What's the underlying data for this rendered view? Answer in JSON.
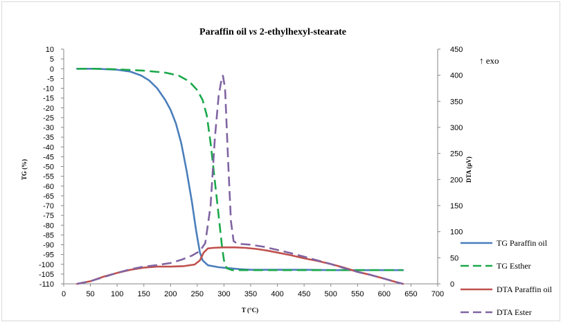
{
  "chart_data": {
    "type": "line",
    "title_prefix": "Paraffin oil ",
    "title_italic": "vs",
    "title_suffix": " 2-ethylhexyl-stearate",
    "xlabel": "T (°C)",
    "ylabel_left": "TG (%)",
    "ylabel_right": "DTA (µV)",
    "annotation": "↑ exo",
    "xlim": [
      0,
      700
    ],
    "x_ticks": [
      "0",
      "50",
      "100",
      "150",
      "200",
      "250",
      "300",
      "350",
      "400",
      "450",
      "500",
      "550",
      "600",
      "650",
      "700"
    ],
    "y_left_lim": [
      -110,
      10
    ],
    "y_left_ticks": [
      "10",
      "5",
      "0",
      "-5",
      "-10",
      "-15",
      "-20",
      "-25",
      "-30",
      "-35",
      "-40",
      "-45",
      "-50",
      "-55",
      "-60",
      "-65",
      "-70",
      "-75",
      "-80",
      "-85",
      "-90",
      "-95",
      "-100",
      "-105",
      "-110"
    ],
    "y_right_lim": [
      0,
      450
    ],
    "y_right_ticks": [
      "450",
      "400",
      "350",
      "300",
      "250",
      "200",
      "150",
      "100",
      "50",
      "0"
    ],
    "grid": false,
    "legend_position": "right",
    "series": [
      {
        "name": "TG Paraffin oil",
        "axis": "left",
        "color": "#4a7ebb",
        "dash": "solid",
        "points": [
          [
            25,
            0
          ],
          [
            60,
            0
          ],
          [
            100,
            -0.5
          ],
          [
            125,
            -1.5
          ],
          [
            145,
            -3.5
          ],
          [
            160,
            -6
          ],
          [
            175,
            -10
          ],
          [
            190,
            -16
          ],
          [
            200,
            -21
          ],
          [
            210,
            -28
          ],
          [
            220,
            -38
          ],
          [
            230,
            -52
          ],
          [
            240,
            -68
          ],
          [
            248,
            -83
          ],
          [
            255,
            -94
          ],
          [
            260,
            -98
          ],
          [
            270,
            -100.5
          ],
          [
            290,
            -101.5
          ],
          [
            310,
            -102
          ],
          [
            330,
            -102.5
          ],
          [
            350,
            -102.8
          ],
          [
            400,
            -102.8
          ],
          [
            450,
            -102.8
          ],
          [
            500,
            -103
          ],
          [
            550,
            -103
          ],
          [
            600,
            -103
          ],
          [
            635,
            -103
          ]
        ]
      },
      {
        "name": "TG Esther",
        "axis": "left",
        "color": "#1aa84a",
        "dash": "dash",
        "points": [
          [
            25,
            0
          ],
          [
            60,
            0
          ],
          [
            100,
            -0.3
          ],
          [
            150,
            -1
          ],
          [
            190,
            -2
          ],
          [
            215,
            -3.5
          ],
          [
            235,
            -6.5
          ],
          [
            250,
            -11
          ],
          [
            260,
            -16
          ],
          [
            268,
            -24
          ],
          [
            275,
            -38
          ],
          [
            282,
            -55
          ],
          [
            290,
            -75
          ],
          [
            296,
            -90
          ],
          [
            300,
            -98
          ],
          [
            305,
            -102
          ],
          [
            315,
            -103
          ],
          [
            350,
            -103
          ],
          [
            400,
            -103
          ],
          [
            450,
            -103
          ],
          [
            500,
            -103
          ],
          [
            550,
            -103
          ],
          [
            600,
            -103
          ],
          [
            635,
            -103
          ]
        ]
      },
      {
        "name": "DTA Paraffin oil",
        "axis": "right",
        "color": "#c0504d",
        "dash": "solid",
        "points": [
          [
            25,
            0
          ],
          [
            50,
            5
          ],
          [
            75,
            14
          ],
          [
            100,
            21
          ],
          [
            125,
            27
          ],
          [
            150,
            31
          ],
          [
            175,
            33
          ],
          [
            200,
            33
          ],
          [
            225,
            34
          ],
          [
            245,
            37
          ],
          [
            255,
            45
          ],
          [
            262,
            60
          ],
          [
            270,
            68
          ],
          [
            280,
            69
          ],
          [
            300,
            70
          ],
          [
            320,
            70
          ],
          [
            340,
            69
          ],
          [
            360,
            67
          ],
          [
            380,
            64
          ],
          [
            400,
            60
          ],
          [
            425,
            55
          ],
          [
            450,
            49
          ],
          [
            475,
            44
          ],
          [
            500,
            38
          ],
          [
            525,
            31
          ],
          [
            550,
            23
          ],
          [
            575,
            17
          ],
          [
            600,
            10
          ],
          [
            620,
            4
          ],
          [
            635,
            0
          ]
        ]
      },
      {
        "name": "DTA Ester",
        "axis": "right",
        "color": "#8064a2",
        "dash": "dash",
        "points": [
          [
            25,
            0
          ],
          [
            50,
            5
          ],
          [
            75,
            13
          ],
          [
            100,
            21
          ],
          [
            125,
            28
          ],
          [
            150,
            33
          ],
          [
            175,
            36
          ],
          [
            200,
            40
          ],
          [
            220,
            46
          ],
          [
            240,
            54
          ],
          [
            255,
            63
          ],
          [
            265,
            78
          ],
          [
            275,
            150
          ],
          [
            283,
            280
          ],
          [
            290,
            360
          ],
          [
            296,
            395
          ],
          [
            298,
            399
          ],
          [
            302,
            375
          ],
          [
            308,
            230
          ],
          [
            313,
            120
          ],
          [
            318,
            82
          ],
          [
            325,
            77
          ],
          [
            350,
            75
          ],
          [
            375,
            71
          ],
          [
            400,
            65
          ],
          [
            425,
            59
          ],
          [
            450,
            52
          ],
          [
            475,
            45
          ],
          [
            500,
            38
          ],
          [
            525,
            30
          ],
          [
            550,
            23
          ],
          [
            575,
            17
          ],
          [
            600,
            10
          ],
          [
            620,
            4
          ],
          [
            635,
            0
          ]
        ]
      }
    ]
  }
}
